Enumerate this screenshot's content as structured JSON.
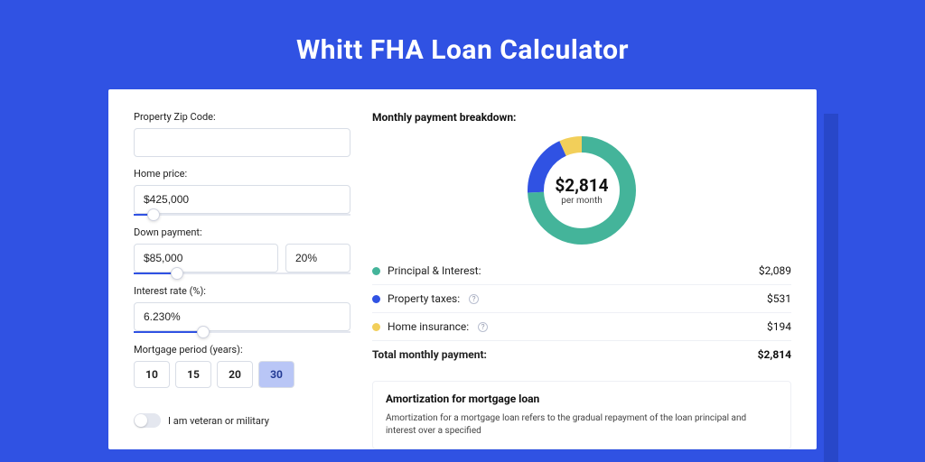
{
  "page": {
    "title": "Whitt FHA Loan Calculator",
    "bg_color": "#3052e3",
    "card_bg": "#ffffff"
  },
  "form": {
    "zip": {
      "label": "Property Zip Code:",
      "value": ""
    },
    "price": {
      "label": "Home price:",
      "value": "$425,000",
      "slider_pct": 9
    },
    "down": {
      "label": "Down payment:",
      "value": "$85,000",
      "pct": "20%",
      "slider_pct": 20
    },
    "rate": {
      "label": "Interest rate (%):",
      "value": "6.230%",
      "slider_pct": 32
    },
    "period": {
      "label": "Mortgage period (years):",
      "options": [
        "10",
        "15",
        "20",
        "30"
      ],
      "selected": "30"
    },
    "veteran": {
      "label": "I am veteran or military",
      "on": false
    }
  },
  "breakdown": {
    "title": "Monthly payment breakdown:",
    "donut": {
      "type": "donut",
      "size": 120,
      "thickness": 18,
      "center_value": "$2,814",
      "center_sub": "per month",
      "segments": [
        {
          "label": "Principal & Interest",
          "value": 2089,
          "color": "#44b49a",
          "pct": 74.2
        },
        {
          "label": "Property taxes",
          "value": 531,
          "color": "#3052e3",
          "pct": 18.9
        },
        {
          "label": "Home insurance",
          "value": 194,
          "color": "#f2cf5a",
          "pct": 6.9
        }
      ]
    },
    "rows": [
      {
        "dot": "#44b49a",
        "label": "Principal & Interest:",
        "info": false,
        "value": "$2,089"
      },
      {
        "dot": "#3052e3",
        "label": "Property taxes:",
        "info": true,
        "value": "$531"
      },
      {
        "dot": "#f2cf5a",
        "label": "Home insurance:",
        "info": true,
        "value": "$194"
      }
    ],
    "total": {
      "label": "Total monthly payment:",
      "value": "$2,814"
    }
  },
  "amortization": {
    "title": "Amortization for mortgage loan",
    "text": "Amortization for a mortgage loan refers to the gradual repayment of the loan principal and interest over a specified"
  }
}
